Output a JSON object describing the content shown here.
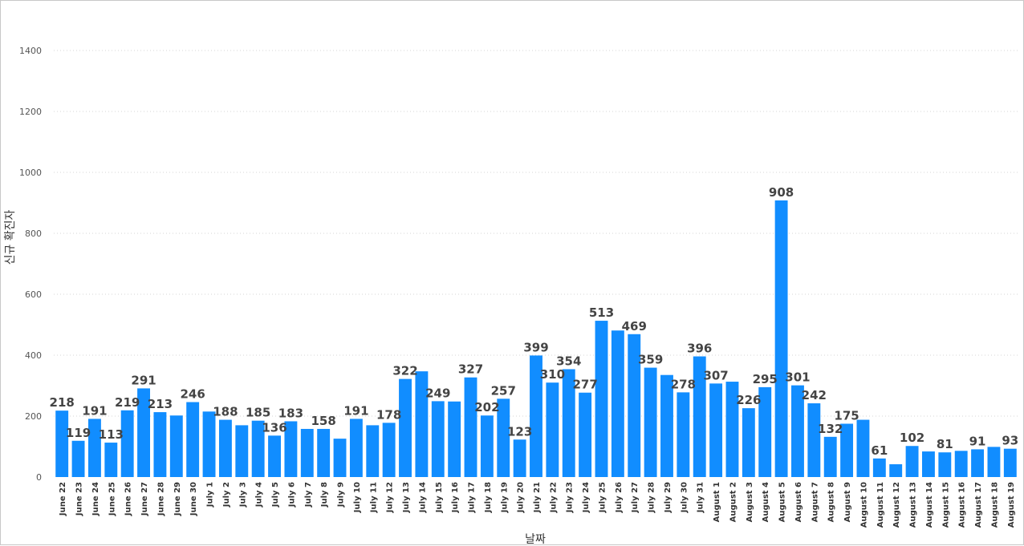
{
  "chart_data": {
    "type": "bar",
    "xlabel": "날짜",
    "ylabel": "신규 확진자",
    "ylim": [
      0,
      1400
    ],
    "yticks": [
      0,
      200,
      400,
      600,
      800,
      1000,
      1200,
      1400
    ],
    "grid": "horizontal dotted",
    "bar_color": "#118DFF",
    "categories": [
      "June 22",
      "June 23",
      "June 24",
      "June 25",
      "June 26",
      "June 27",
      "June 28",
      "June 29",
      "June 30",
      "July 1",
      "July 2",
      "July 3",
      "July 4",
      "July 5",
      "July 6",
      "July 7",
      "July 8",
      "July 9",
      "July 10",
      "July 11",
      "July 12",
      "July 13",
      "July 14",
      "July 15",
      "July 16",
      "July 17",
      "July 18",
      "July 19",
      "July 20",
      "July 21",
      "July 22",
      "July 23",
      "July 24",
      "July 25",
      "July 26",
      "July 27",
      "July 28",
      "July 29",
      "July 30",
      "July 31",
      "August 1",
      "August 2",
      "August 3",
      "August 4",
      "August 5",
      "August 6",
      "August 7",
      "August 8",
      "August 9",
      "August 10",
      "August 11",
      "August 12",
      "August 13",
      "August 14",
      "August 15",
      "August 16",
      "August 17",
      "August 18",
      "August 19"
    ],
    "values": [
      218,
      119,
      191,
      113,
      219,
      291,
      213,
      202,
      246,
      215,
      188,
      170,
      185,
      136,
      183,
      158,
      158,
      126,
      191,
      170,
      178,
      322,
      347,
      249,
      248,
      327,
      202,
      257,
      123,
      399,
      310,
      354,
      277,
      513,
      481,
      469,
      359,
      335,
      278,
      396,
      307,
      313,
      226,
      295,
      908,
      301,
      242,
      132,
      175,
      188,
      61,
      42,
      102,
      84,
      81,
      86,
      91,
      99,
      93
    ],
    "labels": [
      "218",
      "119",
      "191",
      "113",
      "219",
      "291",
      "213",
      "",
      "246",
      "",
      "188",
      "",
      "185",
      "136",
      "183",
      "",
      "158",
      "",
      "191",
      "",
      "178",
      "322",
      "",
      "249",
      "",
      "327",
      "202",
      "257",
      "123",
      "399",
      "310",
      "354",
      "277",
      "513",
      "",
      "469",
      "359",
      "",
      "278",
      "396",
      "307",
      "",
      "226",
      "295",
      "908",
      "301",
      "242",
      "132",
      "175",
      "",
      "61",
      "",
      "102",
      "",
      "81",
      "",
      "91",
      "",
      "93"
    ]
  }
}
